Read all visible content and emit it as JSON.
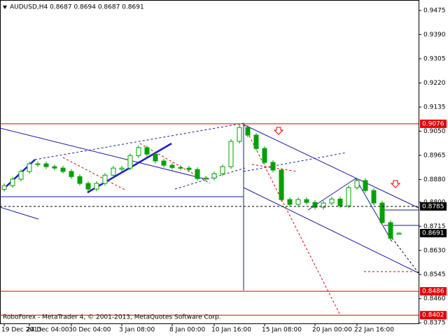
{
  "chart_data": {
    "type": "candlestick",
    "title": "AUDUSD,H4  0.8687 0.8694 0.8687 0.8691",
    "footer": "RoboForex - MetaTrader 4, © 2001-2013, MetaQuotes Software Corp.",
    "categories": [
      "19 Dec 2013",
      null,
      null,
      "24 Dec 04:00",
      null,
      null,
      null,
      null,
      "30 Dec 04:00",
      null,
      null,
      null,
      null,
      null,
      "3 Jan 08:00",
      null,
      null,
      null,
      null,
      null,
      "8 Jan 00:00",
      null,
      null,
      null,
      null,
      "10 Jan 16:00",
      null,
      null,
      null,
      null,
      null,
      "15 Jan 08:00",
      null,
      null,
      null,
      null,
      null,
      "20 Jan 00:00",
      null,
      null,
      null,
      null,
      "22 Jan 16:00",
      null,
      null,
      null,
      null,
      null
    ],
    "open": [
      0.8845,
      0.8858,
      0.8881,
      0.8908,
      0.8932,
      0.8935,
      0.8925,
      0.892,
      0.8908,
      0.889,
      0.8866,
      0.8846,
      0.8866,
      0.8895,
      0.8916,
      0.892,
      0.8964,
      0.8992,
      0.8969,
      0.8945,
      0.893,
      0.8922,
      0.892,
      0.8915,
      0.8883,
      0.8885,
      0.89,
      0.8925,
      0.9014,
      0.9063,
      0.9036,
      0.8989,
      0.894,
      0.8913,
      0.8809,
      0.8792,
      0.8809,
      0.8799,
      0.8782,
      0.8797,
      0.8811,
      0.8787,
      0.8851,
      0.8876,
      0.8841,
      0.8797,
      0.8728,
      0.8687
    ],
    "high": [
      0.8866,
      0.8889,
      0.8916,
      0.8943,
      0.8943,
      0.8943,
      0.8933,
      0.8928,
      0.8916,
      0.8898,
      0.8874,
      0.8874,
      0.8903,
      0.8928,
      0.8928,
      0.8972,
      0.9,
      0.9,
      0.8977,
      0.8953,
      0.8938,
      0.893,
      0.8928,
      0.8923,
      0.8893,
      0.8908,
      0.8933,
      0.9022,
      0.9076,
      0.9071,
      0.9044,
      0.8997,
      0.8948,
      0.8921,
      0.8817,
      0.8817,
      0.8817,
      0.8807,
      0.8805,
      0.8819,
      0.8819,
      0.8859,
      0.8884,
      0.8884,
      0.8849,
      0.8805,
      0.8736,
      0.8694
    ],
    "low": [
      0.8837,
      0.885,
      0.8873,
      0.89,
      0.8924,
      0.8917,
      0.8912,
      0.89,
      0.8882,
      0.8858,
      0.8838,
      0.8838,
      0.8858,
      0.8887,
      0.8908,
      0.8912,
      0.8956,
      0.8961,
      0.8937,
      0.8922,
      0.8914,
      0.8912,
      0.8907,
      0.8875,
      0.8875,
      0.8877,
      0.8892,
      0.8917,
      0.9006,
      0.9028,
      0.8981,
      0.8932,
      0.8905,
      0.8801,
      0.8784,
      0.8784,
      0.8791,
      0.8774,
      0.8774,
      0.8789,
      0.8779,
      0.8779,
      0.8843,
      0.8833,
      0.8789,
      0.872,
      0.8665,
      0.8687
    ],
    "close": [
      0.8858,
      0.8881,
      0.8908,
      0.8935,
      0.8935,
      0.8925,
      0.892,
      0.8908,
      0.889,
      0.8866,
      0.8846,
      0.8866,
      0.8895,
      0.892,
      0.892,
      0.8964,
      0.8992,
      0.8969,
      0.8945,
      0.893,
      0.8922,
      0.892,
      0.8915,
      0.8883,
      0.8885,
      0.89,
      0.8925,
      0.9014,
      0.9063,
      0.9036,
      0.8989,
      0.894,
      0.8913,
      0.8809,
      0.8792,
      0.8809,
      0.8799,
      0.8782,
      0.8797,
      0.8811,
      0.8787,
      0.8851,
      0.8876,
      0.8841,
      0.8797,
      0.8728,
      0.8673,
      0.8691
    ],
    "up_color": "#00a000",
    "down_color": "#00a000",
    "ylim": [
      0.8373,
      0.9512
    ],
    "yticks": [
      0.9475,
      {
        "value": 0.939,
        "label": "0.9390"
      },
      0.9305,
      {
        "value": 0.922,
        "label": "0.9220"
      },
      0.9135,
      {
        "value": 0.905,
        "label": "0.9050"
      },
      0.8965,
      {
        "value": 0.888,
        "label": "0.8880"
      },
      {
        "value": 0.88,
        "label": "0.8800"
      },
      0.8715,
      {
        "value": 0.863,
        "label": "0.8630"
      },
      0.8545,
      {
        "value": 0.846,
        "label": "0.8460"
      },
      0.8375
    ],
    "levels": [
      {
        "value": 0.9076,
        "color": "#e00000",
        "line": "solid"
      },
      {
        "value": 0.8785,
        "color": "#000000",
        "line": "dashed"
      },
      {
        "value": 0.8691,
        "color": "#000000",
        "line": "none"
      },
      {
        "value": 0.8486,
        "color": "#e00000",
        "line": "solid"
      },
      {
        "value": 0.8402,
        "color": "#e00000",
        "line": "solid"
      }
    ]
  }
}
